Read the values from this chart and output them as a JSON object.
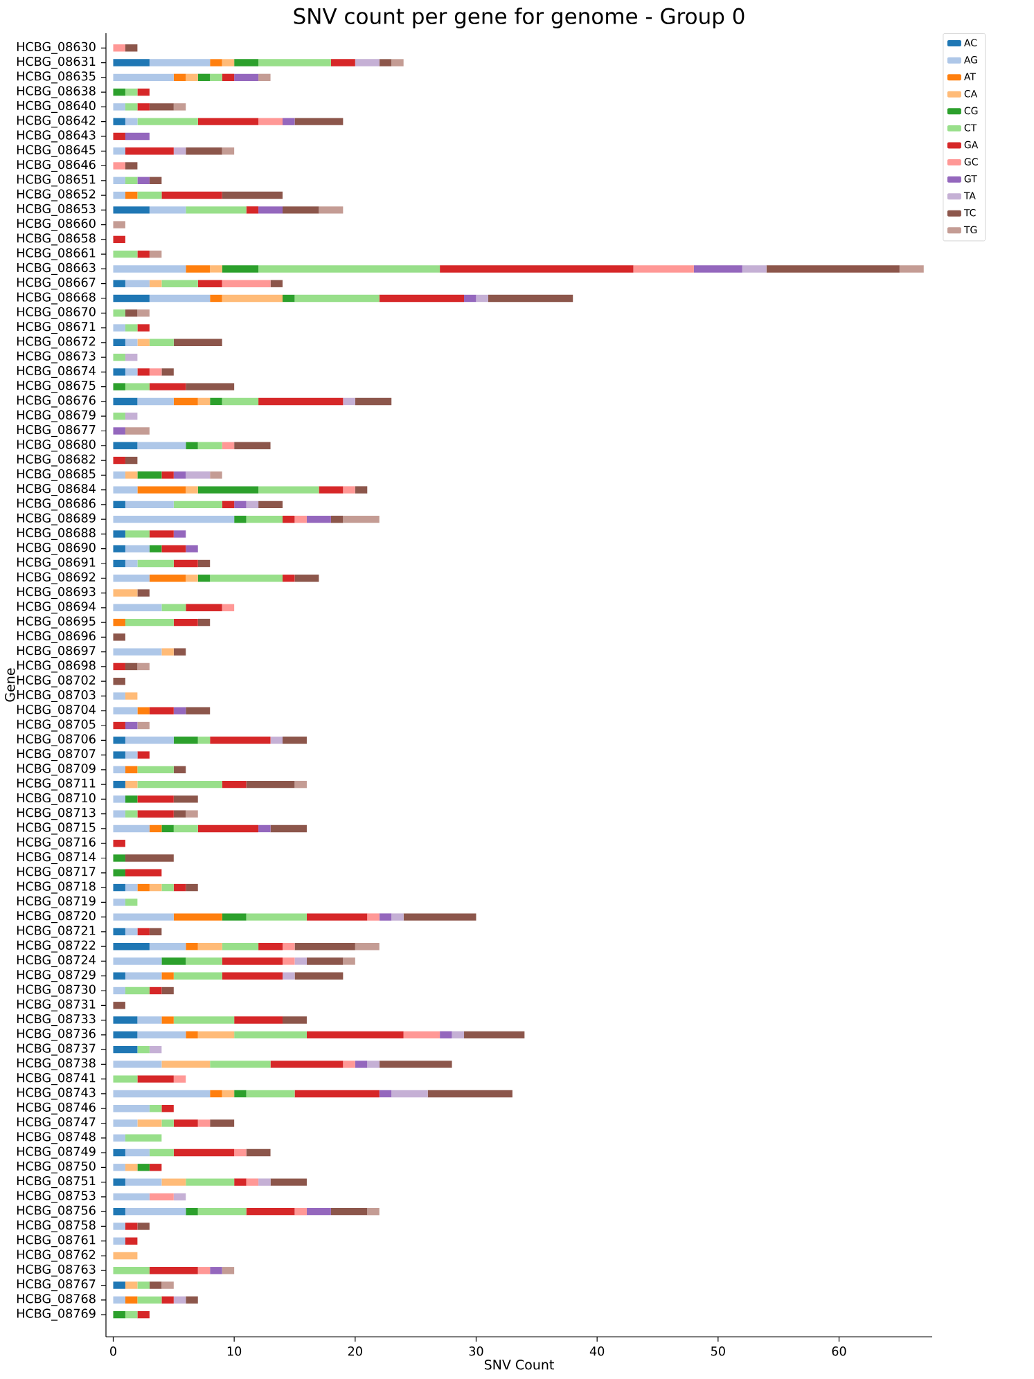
{
  "chart_data": {
    "type": "bar",
    "orientation": "horizontal",
    "stacked": true,
    "title": "SNV count per gene for genome - Group 0",
    "xlabel": "SNV Count",
    "ylabel": "Gene",
    "categories": [
      "HCBG_08630",
      "HCBG_08631",
      "HCBG_08635",
      "HCBG_08638",
      "HCBG_08640",
      "HCBG_08642",
      "HCBG_08643",
      "HCBG_08645",
      "HCBG_08646",
      "HCBG_08651",
      "HCBG_08652",
      "HCBG_08653",
      "HCBG_08660",
      "HCBG_08658",
      "HCBG_08661",
      "HCBG_08663",
      "HCBG_08667",
      "HCBG_08668",
      "HCBG_08670",
      "HCBG_08671",
      "HCBG_08672",
      "HCBG_08673",
      "HCBG_08674",
      "HCBG_08675",
      "HCBG_08676",
      "HCBG_08679",
      "HCBG_08677",
      "HCBG_08680",
      "HCBG_08682",
      "HCBG_08685",
      "HCBG_08684",
      "HCBG_08686",
      "HCBG_08689",
      "HCBG_08688",
      "HCBG_08690",
      "HCBG_08691",
      "HCBG_08692",
      "HCBG_08693",
      "HCBG_08694",
      "HCBG_08695",
      "HCBG_08696",
      "HCBG_08697",
      "HCBG_08698",
      "HCBG_08702",
      "HCBG_08703",
      "HCBG_08704",
      "HCBG_08705",
      "HCBG_08706",
      "HCBG_08707",
      "HCBG_08709",
      "HCBG_08711",
      "HCBG_08710",
      "HCBG_08713",
      "HCBG_08715",
      "HCBG_08716",
      "HCBG_08714",
      "HCBG_08717",
      "HCBG_08718",
      "HCBG_08719",
      "HCBG_08720",
      "HCBG_08721",
      "HCBG_08722",
      "HCBG_08724",
      "HCBG_08729",
      "HCBG_08730",
      "HCBG_08731",
      "HCBG_08733",
      "HCBG_08736",
      "HCBG_08737",
      "HCBG_08738",
      "HCBG_08741",
      "HCBG_08743",
      "HCBG_08746",
      "HCBG_08747",
      "HCBG_08748",
      "HCBG_08749",
      "HCBG_08750",
      "HCBG_08751",
      "HCBG_08753",
      "HCBG_08756",
      "HCBG_08758",
      "HCBG_08761",
      "HCBG_08762",
      "HCBG_08763",
      "HCBG_08767",
      "HCBG_08768",
      "HCBG_08769"
    ],
    "series": [
      {
        "name": "AC",
        "color": "#1f77b4",
        "values": [
          0,
          3,
          0,
          0,
          0,
          1,
          0,
          0,
          0,
          0,
          0,
          3,
          0,
          0,
          0,
          0,
          1,
          3,
          0,
          0,
          1,
          0,
          1,
          0,
          2,
          0,
          0,
          2,
          0,
          0,
          0,
          1,
          0,
          1,
          1,
          1,
          0,
          0,
          0,
          0,
          0,
          0,
          0,
          0,
          0,
          0,
          0,
          1,
          1,
          0,
          1,
          0,
          0,
          0,
          0,
          0,
          0,
          1,
          0,
          0,
          1,
          3,
          0,
          1,
          0,
          0,
          2,
          2,
          2,
          0,
          0,
          0,
          0,
          0,
          0,
          1,
          0,
          1,
          0,
          1,
          0,
          0,
          0,
          0,
          1,
          0,
          0
        ]
      },
      {
        "name": "AG",
        "color": "#aec7e8",
        "values": [
          0,
          5,
          5,
          0,
          1,
          1,
          0,
          1,
          0,
          1,
          1,
          3,
          0,
          0,
          0,
          6,
          2,
          5,
          0,
          1,
          1,
          0,
          1,
          0,
          3,
          0,
          0,
          4,
          0,
          1,
          2,
          4,
          10,
          0,
          2,
          1,
          3,
          0,
          4,
          0,
          0,
          4,
          0,
          0,
          1,
          2,
          0,
          4,
          1,
          1,
          0,
          1,
          1,
          3,
          0,
          0,
          0,
          1,
          1,
          5,
          1,
          3,
          4,
          3,
          1,
          0,
          2,
          4,
          0,
          4,
          0,
          8,
          3,
          2,
          1,
          2,
          1,
          3,
          3,
          5,
          1,
          1,
          0,
          0,
          0,
          1,
          0
        ]
      },
      {
        "name": "AT",
        "color": "#ff7f0e",
        "values": [
          0,
          1,
          1,
          0,
          0,
          0,
          0,
          0,
          0,
          0,
          1,
          0,
          0,
          0,
          0,
          2,
          0,
          1,
          0,
          0,
          0,
          0,
          0,
          0,
          2,
          0,
          0,
          0,
          0,
          0,
          4,
          0,
          0,
          0,
          0,
          0,
          3,
          0,
          0,
          1,
          0,
          0,
          0,
          0,
          0,
          1,
          0,
          0,
          0,
          1,
          0,
          0,
          0,
          1,
          0,
          0,
          0,
          1,
          0,
          4,
          0,
          1,
          0,
          1,
          0,
          0,
          1,
          1,
          0,
          0,
          0,
          1,
          0,
          0,
          0,
          0,
          0,
          0,
          0,
          0,
          0,
          0,
          0,
          0,
          0,
          1,
          0
        ]
      },
      {
        "name": "CA",
        "color": "#ffbb78",
        "values": [
          0,
          1,
          1,
          0,
          0,
          0,
          0,
          0,
          0,
          0,
          0,
          0,
          0,
          0,
          0,
          1,
          1,
          5,
          0,
          0,
          1,
          0,
          0,
          0,
          1,
          0,
          0,
          0,
          0,
          1,
          1,
          0,
          0,
          0,
          0,
          0,
          1,
          2,
          0,
          0,
          0,
          1,
          0,
          0,
          1,
          0,
          0,
          0,
          0,
          0,
          1,
          0,
          0,
          0,
          0,
          0,
          0,
          1,
          0,
          0,
          0,
          2,
          0,
          0,
          0,
          0,
          0,
          3,
          0,
          4,
          0,
          1,
          0,
          2,
          0,
          0,
          1,
          2,
          0,
          0,
          0,
          0,
          2,
          0,
          1,
          0,
          0
        ]
      },
      {
        "name": "CG",
        "color": "#2ca02c",
        "values": [
          0,
          2,
          1,
          1,
          0,
          0,
          0,
          0,
          0,
          0,
          0,
          0,
          0,
          0,
          0,
          3,
          0,
          1,
          0,
          0,
          0,
          0,
          0,
          1,
          1,
          0,
          0,
          1,
          0,
          2,
          5,
          0,
          1,
          0,
          1,
          0,
          1,
          0,
          0,
          0,
          0,
          0,
          0,
          0,
          0,
          0,
          0,
          2,
          0,
          0,
          0,
          1,
          0,
          1,
          0,
          1,
          1,
          0,
          0,
          2,
          0,
          0,
          2,
          0,
          0,
          0,
          0,
          0,
          0,
          0,
          0,
          1,
          0,
          0,
          0,
          0,
          1,
          0,
          0,
          1,
          0,
          0,
          0,
          0,
          0,
          0,
          1
        ]
      },
      {
        "name": "CT",
        "color": "#98df8a",
        "values": [
          0,
          6,
          1,
          1,
          1,
          5,
          0,
          0,
          0,
          1,
          2,
          5,
          0,
          0,
          2,
          15,
          3,
          7,
          1,
          1,
          2,
          1,
          0,
          2,
          3,
          1,
          0,
          2,
          0,
          0,
          5,
          4,
          3,
          2,
          0,
          3,
          6,
          0,
          2,
          4,
          0,
          0,
          0,
          0,
          0,
          0,
          0,
          1,
          0,
          3,
          7,
          0,
          1,
          2,
          0,
          0,
          0,
          1,
          1,
          5,
          0,
          3,
          3,
          4,
          2,
          0,
          5,
          6,
          1,
          5,
          2,
          4,
          1,
          1,
          3,
          2,
          0,
          4,
          0,
          4,
          0,
          0,
          0,
          3,
          1,
          2,
          1
        ]
      },
      {
        "name": "GA",
        "color": "#d62728",
        "values": [
          0,
          2,
          1,
          1,
          1,
          5,
          1,
          4,
          0,
          0,
          5,
          1,
          0,
          1,
          1,
          16,
          2,
          7,
          0,
          1,
          0,
          0,
          1,
          3,
          7,
          0,
          0,
          0,
          1,
          1,
          2,
          1,
          1,
          2,
          2,
          2,
          1,
          0,
          3,
          2,
          0,
          0,
          1,
          0,
          0,
          2,
          1,
          5,
          1,
          0,
          2,
          3,
          3,
          5,
          1,
          0,
          3,
          1,
          0,
          5,
          1,
          2,
          5,
          5,
          1,
          0,
          4,
          8,
          0,
          6,
          3,
          7,
          1,
          2,
          0,
          5,
          1,
          1,
          0,
          4,
          1,
          1,
          0,
          4,
          0,
          1,
          1
        ]
      },
      {
        "name": "GC",
        "color": "#ff9896",
        "values": [
          1,
          0,
          0,
          0,
          0,
          2,
          0,
          0,
          1,
          0,
          0,
          0,
          0,
          0,
          0,
          5,
          4,
          0,
          0,
          0,
          0,
          0,
          1,
          0,
          0,
          0,
          0,
          1,
          0,
          0,
          1,
          0,
          1,
          0,
          0,
          0,
          0,
          0,
          1,
          0,
          0,
          0,
          0,
          0,
          0,
          0,
          0,
          0,
          0,
          0,
          0,
          0,
          0,
          0,
          0,
          0,
          0,
          0,
          0,
          1,
          0,
          1,
          1,
          0,
          0,
          0,
          0,
          3,
          0,
          1,
          1,
          0,
          0,
          1,
          0,
          1,
          0,
          1,
          2,
          1,
          0,
          0,
          0,
          1,
          0,
          0,
          0
        ]
      },
      {
        "name": "GT",
        "color": "#9467bd",
        "values": [
          0,
          0,
          2,
          0,
          0,
          1,
          2,
          0,
          0,
          1,
          0,
          2,
          0,
          0,
          0,
          4,
          0,
          1,
          0,
          0,
          0,
          0,
          0,
          0,
          0,
          0,
          1,
          0,
          0,
          1,
          0,
          1,
          2,
          1,
          1,
          0,
          0,
          0,
          0,
          0,
          0,
          0,
          0,
          0,
          0,
          1,
          1,
          0,
          0,
          0,
          0,
          0,
          0,
          1,
          0,
          0,
          0,
          0,
          0,
          1,
          0,
          0,
          0,
          0,
          0,
          0,
          0,
          1,
          0,
          1,
          0,
          1,
          0,
          0,
          0,
          0,
          0,
          0,
          0,
          2,
          0,
          0,
          0,
          1,
          0,
          0,
          0
        ]
      },
      {
        "name": "TA",
        "color": "#c5b0d5",
        "values": [
          0,
          2,
          0,
          0,
          0,
          0,
          0,
          1,
          0,
          0,
          0,
          0,
          0,
          0,
          0,
          2,
          0,
          1,
          0,
          0,
          0,
          1,
          0,
          0,
          1,
          1,
          0,
          0,
          0,
          2,
          0,
          1,
          0,
          0,
          0,
          0,
          0,
          0,
          0,
          0,
          0,
          0,
          0,
          0,
          0,
          0,
          0,
          1,
          0,
          0,
          0,
          0,
          0,
          0,
          0,
          0,
          0,
          0,
          0,
          1,
          0,
          0,
          1,
          1,
          0,
          0,
          0,
          1,
          1,
          1,
          0,
          3,
          0,
          0,
          0,
          0,
          0,
          1,
          1,
          0,
          0,
          0,
          0,
          0,
          0,
          1,
          0
        ]
      },
      {
        "name": "TC",
        "color": "#8c564b",
        "values": [
          1,
          1,
          0,
          0,
          2,
          4,
          0,
          3,
          1,
          1,
          5,
          3,
          0,
          0,
          0,
          11,
          1,
          7,
          1,
          0,
          4,
          0,
          1,
          4,
          3,
          0,
          0,
          3,
          1,
          0,
          1,
          2,
          1,
          0,
          0,
          1,
          2,
          1,
          0,
          1,
          1,
          1,
          1,
          1,
          0,
          2,
          0,
          2,
          0,
          1,
          4,
          2,
          1,
          3,
          0,
          4,
          0,
          1,
          0,
          6,
          1,
          5,
          3,
          4,
          1,
          1,
          2,
          5,
          0,
          6,
          0,
          7,
          0,
          2,
          0,
          2,
          0,
          3,
          0,
          3,
          1,
          0,
          0,
          0,
          1,
          1,
          0
        ]
      },
      {
        "name": "TG",
        "color": "#c49c94",
        "values": [
          0,
          1,
          1,
          0,
          1,
          0,
          0,
          1,
          0,
          0,
          0,
          2,
          1,
          0,
          1,
          2,
          0,
          0,
          1,
          0,
          0,
          0,
          0,
          0,
          0,
          0,
          2,
          0,
          0,
          1,
          0,
          0,
          3,
          0,
          0,
          0,
          0,
          0,
          0,
          0,
          0,
          0,
          1,
          0,
          0,
          0,
          1,
          0,
          0,
          0,
          1,
          0,
          1,
          0,
          0,
          0,
          0,
          0,
          0,
          0,
          0,
          2,
          1,
          0,
          0,
          0,
          0,
          0,
          0,
          0,
          0,
          0,
          0,
          0,
          0,
          0,
          0,
          0,
          0,
          1,
          0,
          0,
          0,
          1,
          1,
          0,
          0
        ]
      }
    ],
    "xlim": [
      -0.6,
      67.7
    ],
    "xticks": [
      0,
      10,
      20,
      30,
      40,
      50,
      60
    ],
    "legend": "top right",
    "grid": false
  }
}
